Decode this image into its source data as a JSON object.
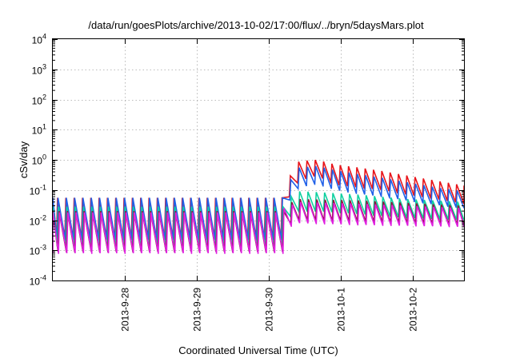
{
  "chart_data": {
    "type": "line",
    "title": "/data/run/goesPlots/archive/2013-10-02/17:00/flux/../bryn/5daysMars.plot",
    "xlabel": "Coordinated Universal Time (UTC)",
    "ylabel": "cSv/day",
    "xlim": [
      "2013-09-27 00:00",
      "2013-10-02 17:00"
    ],
    "ylim": [
      0.0001,
      10000
    ],
    "yscale": "log",
    "grid": true,
    "x_ticks": [
      {
        "label": "2013-9-28",
        "value": "2013-09-28 00:00"
      },
      {
        "label": "2013-9-29",
        "value": "2013-09-29 00:00"
      },
      {
        "label": "2013-9-30",
        "value": "2013-09-30 00:00"
      },
      {
        "label": "2013-10-1",
        "value": "2013-10-01 00:00"
      },
      {
        "label": "2013-10-2",
        "value": "2013-10-02 00:00"
      }
    ],
    "y_ticks": [
      {
        "base": "10",
        "exp": "-4",
        "value": 0.0001
      },
      {
        "base": "10",
        "exp": "-3",
        "value": 0.001
      },
      {
        "base": "10",
        "exp": "-2",
        "value": 0.01
      },
      {
        "base": "10",
        "exp": "-1",
        "value": 0.1
      },
      {
        "base": "10",
        "exp": "0",
        "value": 1
      },
      {
        "base": "10",
        "exp": "1",
        "value": 10
      },
      {
        "base": "10",
        "exp": "2",
        "value": 100
      },
      {
        "base": "10",
        "exp": "3",
        "value": 1000
      },
      {
        "base": "10",
        "exp": "4",
        "value": 10000
      }
    ],
    "sawtooth_period_hours": 2.77,
    "event_onset": "2013-09-30 05:00",
    "series": [
      {
        "color": "#e8141a",
        "baseline": {
          "peak": 0.055,
          "trough": 0.0025
        },
        "event": [
          {
            "x": "2013-09-30 05:00",
            "peak": 0.13,
            "trough": 0.03
          },
          {
            "x": "2013-09-30 10:00",
            "peak": 0.9,
            "trough": 0.2
          },
          {
            "x": "2013-09-30 16:00",
            "peak": 1.0,
            "trough": 0.3
          },
          {
            "x": "2013-09-30 22:00",
            "peak": 0.7,
            "trough": 0.15
          },
          {
            "x": "2013-10-01 06:00",
            "peak": 0.55,
            "trough": 0.12
          },
          {
            "x": "2013-10-01 14:00",
            "peak": 0.42,
            "trough": 0.1
          },
          {
            "x": "2013-10-01 22:00",
            "peak": 0.3,
            "trough": 0.07
          },
          {
            "x": "2013-10-02 08:00",
            "peak": 0.2,
            "trough": 0.05
          },
          {
            "x": "2013-10-02 17:00",
            "peak": 0.14,
            "trough": 0.035
          }
        ]
      },
      {
        "color": "#2060e8",
        "baseline": {
          "peak": 0.055,
          "trough": 0.0022
        },
        "event": [
          {
            "x": "2013-09-30 05:00",
            "peak": 0.1,
            "trough": 0.025
          },
          {
            "x": "2013-09-30 10:00",
            "peak": 0.55,
            "trough": 0.12
          },
          {
            "x": "2013-09-30 16:00",
            "peak": 0.62,
            "trough": 0.16
          },
          {
            "x": "2013-09-30 22:00",
            "peak": 0.45,
            "trough": 0.1
          },
          {
            "x": "2013-10-01 06:00",
            "peak": 0.33,
            "trough": 0.075
          },
          {
            "x": "2013-10-01 14:00",
            "peak": 0.25,
            "trough": 0.06
          },
          {
            "x": "2013-10-01 22:00",
            "peak": 0.18,
            "trough": 0.045
          },
          {
            "x": "2013-10-02 08:00",
            "peak": 0.12,
            "trough": 0.032
          },
          {
            "x": "2013-10-02 17:00",
            "peak": 0.09,
            "trough": 0.025
          }
        ]
      },
      {
        "color": "#10d0a0",
        "baseline": {
          "peak": 0.028,
          "trough": 0.0012
        },
        "event": [
          {
            "x": "2013-09-30 05:00",
            "peak": 0.04,
            "trough": 0.01
          },
          {
            "x": "2013-09-30 10:00",
            "peak": 0.09,
            "trough": 0.02
          },
          {
            "x": "2013-09-30 16:00",
            "peak": 0.085,
            "trough": 0.02
          },
          {
            "x": "2013-10-01 06:00",
            "peak": 0.07,
            "trough": 0.016
          },
          {
            "x": "2013-10-01 22:00",
            "peak": 0.05,
            "trough": 0.012
          },
          {
            "x": "2013-10-02 17:00",
            "peak": 0.04,
            "trough": 0.01
          }
        ]
      },
      {
        "color": "#8b1a3a",
        "baseline": {
          "peak": 0.02,
          "trough": 0.0009
        },
        "event": [
          {
            "x": "2013-09-30 05:00",
            "peak": 0.03,
            "trough": 0.006
          },
          {
            "x": "2013-09-30 10:00",
            "peak": 0.05,
            "trough": 0.01
          },
          {
            "x": "2013-10-01 06:00",
            "peak": 0.045,
            "trough": 0.009
          },
          {
            "x": "2013-10-02 17:00",
            "peak": 0.03,
            "trough": 0.007
          }
        ]
      },
      {
        "color": "#e020e0",
        "baseline": {
          "peak": 0.018,
          "trough": 0.0008
        },
        "event": [
          {
            "x": "2013-09-30 05:00",
            "peak": 0.025,
            "trough": 0.005
          },
          {
            "x": "2013-09-30 10:00",
            "peak": 0.04,
            "trough": 0.008
          },
          {
            "x": "2013-10-01 06:00",
            "peak": 0.035,
            "trough": 0.007
          },
          {
            "x": "2013-10-02 17:00",
            "peak": 0.025,
            "trough": 0.006
          }
        ]
      }
    ]
  }
}
